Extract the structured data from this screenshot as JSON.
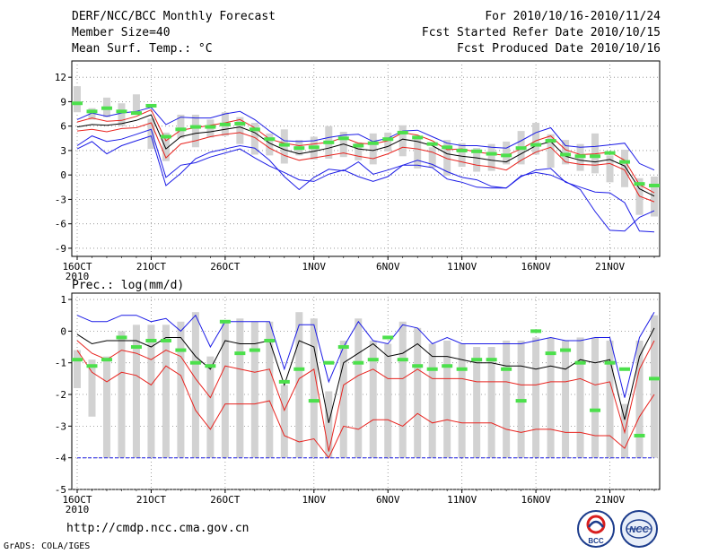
{
  "header": {
    "title": "DERF/NCC/BCC Monthly Forecast",
    "member_size": "Member Size=40",
    "variable": "Mean Surf. Temp.: °C",
    "period": "For 2010/10/16-2010/11/24",
    "fcst_started": "Fcst Started Refer Date 2010/10/15",
    "fcst_produced": "Fcst Produced Date 2010/10/16"
  },
  "footer": {
    "url": "http://cmdp.ncc.cma.gov.cn",
    "grads": "GrADS: COLA/IGES",
    "logo_bcc_text": "BCC",
    "logo_ncc_text": "NCC"
  },
  "colors": {
    "ensemble_mean": "#000000",
    "spread": "#e8231e",
    "extreme": "#1c1ce6",
    "box": "#d2d2d2",
    "climatology": "#4ce04c"
  },
  "chart_data": [
    {
      "type": "line",
      "name": "temperature",
      "title": "Mean Surf. Temp.: °C",
      "ylim": [
        -10,
        14
      ],
      "yticks": [
        12,
        9,
        6,
        3,
        0,
        -3,
        -6,
        -9
      ],
      "ytick_labels": [
        "12",
        "9",
        "6",
        "3",
        "0",
        "-3",
        "-6",
        "-9"
      ],
      "xticks": [
        0,
        5,
        10,
        16,
        21,
        26,
        31,
        36
      ],
      "xtick_labels": [
        "16OCT",
        "21OCT",
        "26OCT",
        "1NOV",
        "6NOV",
        "11NOV",
        "16NOV",
        "21NOV"
      ],
      "xtick_sub": "2010",
      "n_days": 40,
      "series": [
        {
          "name": "max",
          "color_key": "extreme",
          "values": [
            3.2,
            4.1,
            2.6,
            3.6,
            4.2,
            4.8,
            -1.3,
            0.2,
            2,
            2.8,
            3.2,
            3.6,
            3.3,
            1.8,
            -0.2,
            -1.8,
            -0.3,
            0.7,
            0.5,
            1.6,
            0.1,
            0.6,
            1.2,
            1.8,
            1.3,
            0.4,
            -0.3,
            -0.6,
            -1.4,
            -1.6,
            -0.1,
            0.3,
            0,
            -0.8,
            -1.8,
            -4.5,
            -6.8,
            -6.9,
            -5.2,
            -4.4
          ]
        },
        {
          "name": "max_b",
          "color_key": "extreme",
          "values": [
            6.8,
            7.6,
            7.2,
            7.6,
            7.8,
            8.3,
            6.2,
            7.1,
            7,
            7,
            7.5,
            7.8,
            6.8,
            5.4,
            4.2,
            4.1,
            4.2,
            4.6,
            4.9,
            5,
            4.1,
            4.5,
            5.4,
            5.5,
            4.7,
            3.9,
            3.6,
            3.6,
            3.4,
            3.3,
            4.2,
            5.2,
            5.8,
            3.6,
            3.4,
            3.5,
            3.7,
            3.9,
            1.4,
            0.6
          ]
        },
        {
          "name": "p75",
          "color_key": "spread",
          "values": [
            6.5,
            7,
            6.6,
            6.7,
            7.2,
            8,
            4.2,
            5.5,
            5.8,
            6.1,
            6.4,
            6.8,
            5.8,
            4.4,
            3.9,
            3.6,
            3.8,
            4,
            4.6,
            3.9,
            3.8,
            4.2,
            5.2,
            4.9,
            4.2,
            3.1,
            3.2,
            2.8,
            2.6,
            2.4,
            3.2,
            4.2,
            4.8,
            3.1,
            2.5,
            2.6,
            2.8,
            1.8,
            -1.2,
            -2.2
          ]
        },
        {
          "name": "mean",
          "color_key": "ensemble_mean",
          "values": [
            5.9,
            6.2,
            6.1,
            6.3,
            6.7,
            7.4,
            3.2,
            4.7,
            5.1,
            5.3,
            5.6,
            5.9,
            5.2,
            3.9,
            3.1,
            2.6,
            2.9,
            3.3,
            3.8,
            3.2,
            3,
            3.5,
            4.4,
            4.1,
            3.6,
            2.6,
            2.3,
            2.1,
            1.8,
            1.6,
            2.6,
            3.6,
            4.1,
            2.3,
            1.8,
            1.6,
            1.9,
            1.1,
            -1.7,
            -2.6
          ]
        },
        {
          "name": "p25",
          "color_key": "spread",
          "values": [
            5.4,
            5.6,
            5.3,
            5.7,
            5.8,
            6.4,
            2.1,
            3.8,
            4.2,
            4.7,
            5,
            5.2,
            4.6,
            3.3,
            2.4,
            1.8,
            2.1,
            2.4,
            2.7,
            2.3,
            2,
            2.6,
            3.4,
            3.2,
            2.8,
            2,
            1.6,
            1.2,
            1,
            0.6,
            1.8,
            2.8,
            3.4,
            1.6,
            1.3,
            1.2,
            1.4,
            0.6,
            -2.6,
            -3.3
          ]
        },
        {
          "name": "min_b",
          "color_key": "extreme",
          "values": [
            3.6,
            4.8,
            4.1,
            4.4,
            5,
            5.6,
            -0.3,
            1.2,
            1.5,
            2.2,
            2.7,
            3.2,
            2.1,
            1.1,
            0.3,
            -0.6,
            -0.8,
            0.1,
            0.6,
            -0.2,
            -0.8,
            -0.2,
            1.2,
            1.2,
            0.9,
            -0.5,
            -0.9,
            -1.5,
            -1.6,
            -1.6,
            -0.2,
            0.6,
            0.8,
            -0.9,
            -1.5,
            -2.1,
            -2.2,
            -3.4,
            -6.9,
            -7
          ]
        }
      ],
      "boxes": [
        {
          "low": 7.7,
          "high": 10.9
        },
        {
          "low": 6.8,
          "high": 8.2
        },
        {
          "low": 7.1,
          "high": 9.5
        },
        {
          "low": 6,
          "high": 8.8
        },
        {
          "low": 7.4,
          "high": 9.9
        },
        {
          "low": 3.2,
          "high": 6.9
        },
        {
          "low": 1.7,
          "high": 5.2
        },
        {
          "low": 4.5,
          "high": 7.4
        },
        {
          "low": 3.4,
          "high": 7.4
        },
        {
          "low": 4.6,
          "high": 6.8
        },
        {
          "low": 4.8,
          "high": 7.7
        },
        {
          "low": 3.8,
          "high": 7.1
        },
        {
          "low": 2.5,
          "high": 6.4
        },
        {
          "low": 2.4,
          "high": 5.1
        },
        {
          "low": 1.4,
          "high": 5.6
        },
        {
          "low": 2.4,
          "high": 4.3
        },
        {
          "low": 1.9,
          "high": 4.7
        },
        {
          "low": 2,
          "high": 6
        },
        {
          "low": 2.2,
          "high": 5.3
        },
        {
          "low": 1.8,
          "high": 4
        },
        {
          "low": 1.3,
          "high": 5.1
        },
        {
          "low": 2.9,
          "high": 5.2
        },
        {
          "low": 2.3,
          "high": 6.1
        },
        {
          "low": 0.8,
          "high": 4.5
        },
        {
          "low": 0.9,
          "high": 3.4
        },
        {
          "low": -0.1,
          "high": 4.3
        },
        {
          "low": 1,
          "high": 3.9
        },
        {
          "low": 0.4,
          "high": 3.3
        },
        {
          "low": 0.5,
          "high": 3.8
        },
        {
          "low": 1.3,
          "high": 4.1
        },
        {
          "low": 1.3,
          "high": 5.4
        },
        {
          "low": 2.5,
          "high": 6.4
        },
        {
          "low": 0.9,
          "high": 5
        },
        {
          "low": 1.3,
          "high": 4.3
        },
        {
          "low": 0.5,
          "high": 3.8
        },
        {
          "low": 0.2,
          "high": 5.1
        },
        {
          "low": -0.9,
          "high": 2.4
        },
        {
          "low": -1.5,
          "high": 3.1
        },
        {
          "low": -4.9,
          "high": -0.4
        },
        {
          "low": -5.1,
          "high": -0.2
        }
      ],
      "climatology": [
        8.8,
        7.8,
        8.2,
        7.8,
        7.6,
        8.5,
        4.7,
        5.6,
        5.9,
        5.9,
        6.2,
        6.3,
        5.6,
        4.4,
        3.7,
        3.3,
        3.4,
        4,
        4.5,
        3.6,
        3.9,
        4.4,
        5.2,
        4.6,
        3.8,
        3.4,
        3,
        2.9,
        2.6,
        2.4,
        3.3,
        3.7,
        4.2,
        2.5,
        2.3,
        2.3,
        2.7,
        1.6,
        -1.1,
        -1.3
      ]
    },
    {
      "type": "line",
      "name": "precipitation",
      "title": "Prec.: log(mm/d)",
      "ylim": [
        -5,
        1.2
      ],
      "yticks": [
        1,
        0,
        -1,
        -2,
        -3,
        -4,
        -5
      ],
      "ytick_labels": [
        "1",
        "0",
        "-1",
        "-2",
        "-3",
        "-4",
        "-5"
      ],
      "xticks": [
        0,
        5,
        10,
        16,
        21,
        26,
        31,
        36
      ],
      "xtick_labels": [
        "16OCT",
        "21OCT",
        "26OCT",
        "1NOV",
        "6NOV",
        "11NOV",
        "16NOV",
        "21NOV"
      ],
      "xtick_sub": "2010",
      "n_days": 40,
      "series": [
        {
          "name": "max",
          "color_key": "extreme",
          "values": [
            0.5,
            0.3,
            0.3,
            0.5,
            0.5,
            0.3,
            0.4,
            0,
            0.5,
            -0.5,
            0.3,
            0.3,
            0.3,
            0.3,
            -1.2,
            0.2,
            0.2,
            -1.6,
            -0.5,
            0.3,
            -0.3,
            -0.4,
            0.2,
            0.1,
            -0.4,
            -0.2,
            -0.4,
            -0.4,
            -0.4,
            -0.4,
            -0.4,
            -0.3,
            -0.2,
            -0.3,
            -0.3,
            -0.2,
            -0.2,
            -2.1,
            -0.2,
            0.6
          ]
        },
        {
          "name": "mean",
          "color_key": "ensemble_mean",
          "values": [
            -0.1,
            -0.4,
            -0.3,
            -0.3,
            -0.3,
            -0.5,
            -0.2,
            -0.2,
            -0.8,
            -1.2,
            -0.3,
            -0.4,
            -0.4,
            -0.3,
            -1.7,
            -0.3,
            -0.5,
            -2.9,
            -1,
            -0.7,
            -0.4,
            -0.8,
            -0.7,
            -0.4,
            -0.8,
            -0.8,
            -0.9,
            -1,
            -1,
            -1.1,
            -1.1,
            -1.2,
            -1.1,
            -1.2,
            -0.9,
            -1,
            -0.9,
            -2.8,
            -0.8,
            0.1
          ]
        },
        {
          "name": "p75",
          "color_key": "spread",
          "values": [
            -0.3,
            -0.7,
            -0.9,
            -0.6,
            -0.7,
            -0.9,
            -0.6,
            -0.8,
            -1.5,
            -2.1,
            -1.1,
            -1.2,
            -1.3,
            -1.2,
            -2.5,
            -1.5,
            -1.2,
            -3.8,
            -1.7,
            -1.4,
            -1.2,
            -1.5,
            -1.5,
            -1.2,
            -1.5,
            -1.5,
            -1.5,
            -1.6,
            -1.6,
            -1.6,
            -1.7,
            -1.7,
            -1.6,
            -1.6,
            -1.5,
            -1.7,
            -1.6,
            -3.2,
            -1.2,
            -0.3
          ]
        },
        {
          "name": "p25",
          "color_key": "spread",
          "values": [
            -0.6,
            -1.3,
            -1.6,
            -1.3,
            -1.4,
            -1.7,
            -1.1,
            -1.4,
            -2.5,
            -3.1,
            -2.3,
            -2.3,
            -2.3,
            -2.2,
            -3.3,
            -3.5,
            -3.4,
            -4,
            -3,
            -3.1,
            -2.8,
            -2.8,
            -3,
            -2.6,
            -2.9,
            -2.8,
            -2.9,
            -2.9,
            -2.9,
            -3.1,
            -3.2,
            -3.1,
            -3.1,
            -3.2,
            -3.2,
            -3.3,
            -3.3,
            -3.7,
            -2.7,
            -2
          ]
        },
        {
          "name": "min",
          "color_key": "extreme",
          "values": [
            -4,
            -4,
            -4,
            -4,
            -4,
            -4,
            -4,
            -4,
            -4,
            -4,
            -4,
            -4,
            -4,
            -4,
            -4,
            -4,
            -4,
            -4,
            -4,
            -4,
            -4,
            -4,
            -4,
            -4,
            -4,
            -4,
            -4,
            -4,
            -4,
            -4,
            -4,
            -4,
            -4,
            -4,
            -4,
            -4,
            -4,
            -4,
            -4,
            -4
          ]
        }
      ],
      "boxes": [
        {
          "low": -1.8,
          "high": -0.6
        },
        {
          "low": -2.7,
          "high": -0.9
        },
        {
          "low": -4,
          "high": -0.8
        },
        {
          "low": -4,
          "high": 0
        },
        {
          "low": -4,
          "high": 0.2
        },
        {
          "low": -4,
          "high": 0.2
        },
        {
          "low": -4,
          "high": 0.2
        },
        {
          "low": -4,
          "high": 0.3
        },
        {
          "low": -4,
          "high": 0.6
        },
        {
          "low": -4,
          "high": -0.8
        },
        {
          "low": -4,
          "high": 0.3
        },
        {
          "low": -4,
          "high": 0.4
        },
        {
          "low": -4,
          "high": 0.3
        },
        {
          "low": -4,
          "high": 0.3
        },
        {
          "low": -4,
          "high": -1.7
        },
        {
          "low": -4,
          "high": 0.6
        },
        {
          "low": -4,
          "high": 0.4
        },
        {
          "low": -4,
          "high": -1.9
        },
        {
          "low": -4,
          "high": -0.3
        },
        {
          "low": -4,
          "high": 0.4
        },
        {
          "low": -4,
          "high": -0.3
        },
        {
          "low": -4,
          "high": -0.4
        },
        {
          "low": -4,
          "high": 0.3
        },
        {
          "low": -4,
          "high": 0.1
        },
        {
          "low": -4,
          "high": -0.4
        },
        {
          "low": -4,
          "high": -0.3
        },
        {
          "low": -4,
          "high": -0.4
        },
        {
          "low": -4,
          "high": -0.5
        },
        {
          "low": -4,
          "high": -0.5
        },
        {
          "low": -4,
          "high": -0.3
        },
        {
          "low": -4,
          "high": -0.3
        },
        {
          "low": -4,
          "high": -0.2
        },
        {
          "low": -4,
          "high": -0.2
        },
        {
          "low": -4,
          "high": -0.3
        },
        {
          "low": -4,
          "high": -0.2
        },
        {
          "low": -4,
          "high": -0.2
        },
        {
          "low": -4,
          "high": -0.3
        },
        {
          "low": -4,
          "high": -2.3
        },
        {
          "low": -4,
          "high": -0.3
        },
        {
          "low": -4,
          "high": 0.5
        }
      ],
      "climatology": [
        -0.9,
        -1.1,
        -0.9,
        -0.2,
        -0.5,
        -0.3,
        -0.3,
        -0.6,
        -1,
        -1.1,
        0.3,
        -0.7,
        -0.6,
        -0.3,
        -1.6,
        -1.2,
        -2.2,
        -1,
        -0.5,
        -1,
        -0.9,
        -0.2,
        -0.9,
        -1.1,
        -1.2,
        -1.1,
        -1.2,
        -0.9,
        -0.9,
        -1.2,
        -2.2,
        0,
        -0.7,
        -0.6,
        -1,
        -2.5,
        -1,
        -1.2,
        -3.3,
        -1.5
      ]
    }
  ]
}
